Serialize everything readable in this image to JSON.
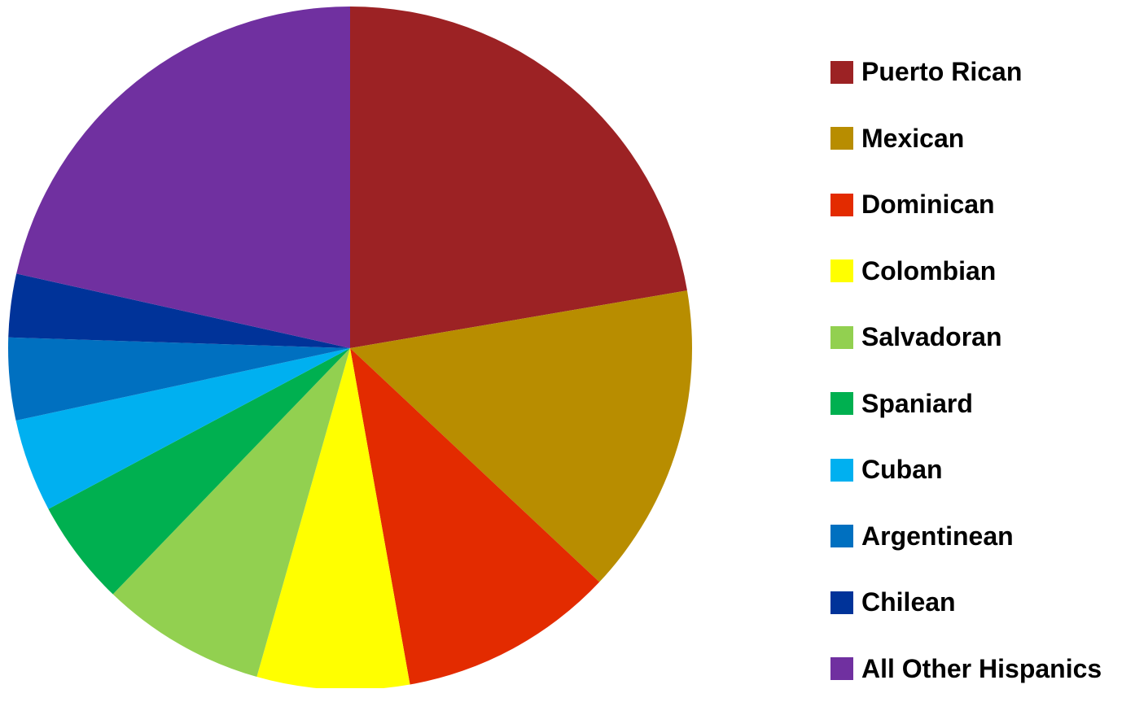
{
  "chart_data": {
    "type": "pie",
    "start_angle": "top",
    "direction": "clockwise",
    "legend_placement": "right",
    "title": "",
    "categories": [
      "Puerto Rican",
      "Mexican",
      "Dominican",
      "Colombian",
      "Salvadoran",
      "Spaniard",
      "Cuban",
      "Argentinean",
      "Chilean",
      "All Other Hispanics"
    ],
    "values": [
      22.3,
      14.7,
      10.2,
      7.2,
      7.8,
      5.0,
      4.4,
      3.9,
      3.0,
      21.5
    ],
    "unit": "percent (estimated)",
    "colors": [
      "#9C2224",
      "#B88D00",
      "#E32B00",
      "#FFFF00",
      "#92D050",
      "#00B050",
      "#00B0F0",
      "#0070C0",
      "#003399",
      "#7030A0"
    ]
  }
}
